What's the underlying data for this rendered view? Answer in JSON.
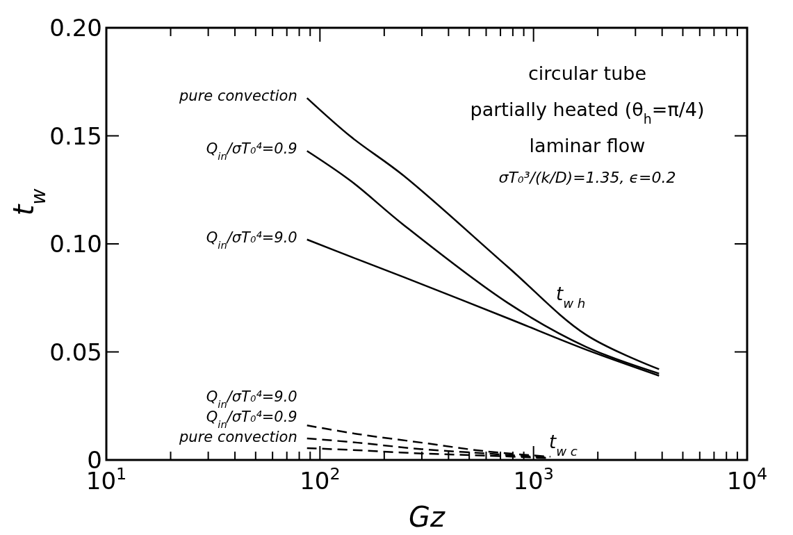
{
  "chart_data": {
    "type": "line",
    "xlabel": "Gz",
    "ylabel": "t$_{w}$",
    "log": "x",
    "grid": false,
    "legend": false,
    "marker": "none",
    "xlim": [
      10,
      10000
    ],
    "ylim": [
      0,
      0.2
    ],
    "xticks": [
      {
        "value": 10,
        "label": "10$^{1}$"
      },
      {
        "value": 20,
        "label": null
      },
      {
        "value": 30,
        "label": null
      },
      {
        "value": 40,
        "label": null
      },
      {
        "value": 50,
        "label": null
      },
      {
        "value": 60,
        "label": null
      },
      {
        "value": 70,
        "label": null
      },
      {
        "value": 80,
        "label": null
      },
      {
        "value": 90,
        "label": null
      },
      {
        "value": 100,
        "label": "10$^{2}$"
      },
      {
        "value": 200,
        "label": null
      },
      {
        "value": 300,
        "label": null
      },
      {
        "value": 400,
        "label": null
      },
      {
        "value": 500,
        "label": null
      },
      {
        "value": 600,
        "label": null
      },
      {
        "value": 700,
        "label": null
      },
      {
        "value": 800,
        "label": null
      },
      {
        "value": 900,
        "label": null
      },
      {
        "value": 1000,
        "label": "10$^{3}$"
      },
      {
        "value": 2000,
        "label": null
      },
      {
        "value": 3000,
        "label": null
      },
      {
        "value": 4000,
        "label": null
      },
      {
        "value": 5000,
        "label": null
      },
      {
        "value": 6000,
        "label": null
      },
      {
        "value": 7000,
        "label": null
      },
      {
        "value": 8000,
        "label": null
      },
      {
        "value": 9000,
        "label": null
      },
      {
        "value": 10000,
        "label": "10$^{4}$"
      }
    ],
    "yticks": [
      0,
      {
        "value": 0.05,
        "label": "0.05"
      },
      {
        "value": 0.1,
        "label": "0.10"
      },
      {
        "value": 0.15,
        "label": "0.15"
      },
      {
        "value": 0.2,
        "label": "0.20"
      }
    ],
    "x": [
      87,
      140,
      247,
      757,
      1758,
      3870
    ],
    "series": [
      {
        "name": "pure convection",
        "color": "#000000",
        "line_style": "solid",
        "values": [
          0.1675,
          0.1495,
          0.1315,
          0.0894,
          0.058,
          0.042
        ]
      },
      {
        "name": "Q$_{in}$/σT₀⁴=0.9",
        "color": "#000000",
        "line_style": "solid",
        "values": [
          0.143,
          0.129,
          0.1087,
          0.0727,
          0.0524,
          0.04
        ]
      },
      {
        "name": "Q$_{in}$/σT₀⁴=9.0",
        "color": "#000000",
        "line_style": "solid",
        "values": [
          0.102,
          0.094,
          0.0846,
          0.0656,
          0.0511,
          0.039
        ]
      },
      {
        "name": "Q$_{in}$/σT₀⁴=9.0",
        "color": "#000000",
        "line_style": "dashed",
        "x": [
          87,
          150,
          300,
          600,
          1200
        ],
        "values": [
          0.016,
          0.012,
          0.008,
          0.004,
          0.0015
        ]
      },
      {
        "name": "Q$_{in}$/σT₀⁴=0.9",
        "color": "#000000",
        "line_style": "dashed",
        "x": [
          87,
          150,
          300,
          600,
          1200
        ],
        "values": [
          0.01,
          0.008,
          0.005,
          0.003,
          0.001
        ]
      },
      {
        "name": "pure convection",
        "color": "#000000",
        "line_style": "dashed",
        "x": [
          87,
          150,
          300,
          600,
          1200
        ],
        "values": [
          0.0055,
          0.0045,
          0.003,
          0.002,
          0.0008
        ]
      }
    ],
    "annotations": [
      "circular tube",
      "partially heated (θ$_{h}$=π/4)",
      "laminar flow",
      "σT₀³/(k/D)=1.35, ϵ=0.2",
      "t$_{w h}$",
      "t$_{w c}$"
    ]
  }
}
